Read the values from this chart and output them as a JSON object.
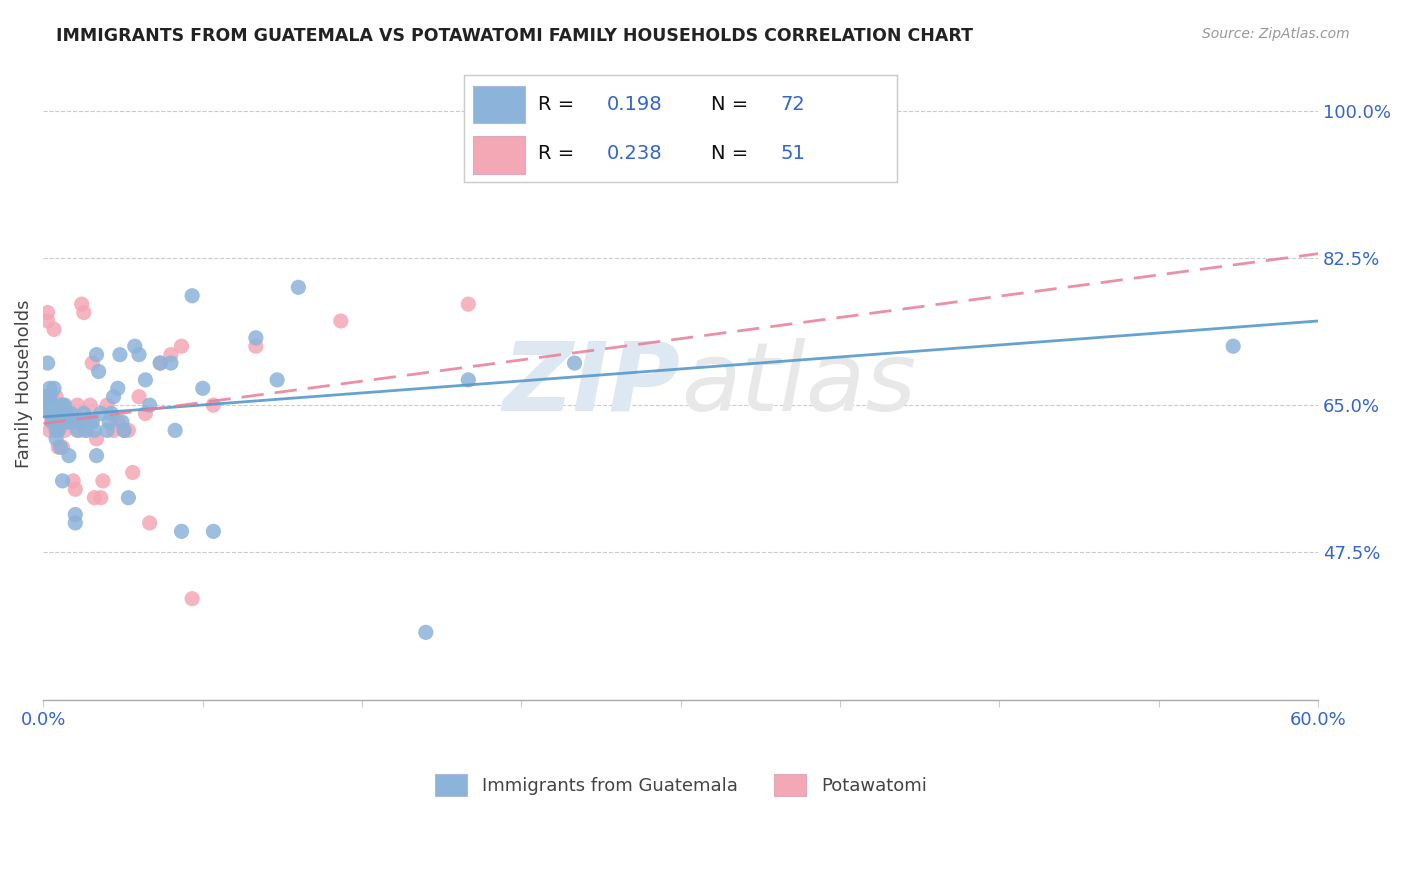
{
  "title": "IMMIGRANTS FROM GUATEMALA VS POTAWATOMI FAMILY HOUSEHOLDS CORRELATION CHART",
  "source": "Source: ZipAtlas.com",
  "ylabel": "Family Households",
  "yticks": [
    "100.0%",
    "82.5%",
    "65.0%",
    "47.5%"
  ],
  "ytick_vals": [
    1.0,
    0.825,
    0.65,
    0.475
  ],
  "xmin": 0.0,
  "xmax": 0.6,
  "ymin": 0.3,
  "ymax": 1.05,
  "blue_color": "#8cb3d9",
  "pink_color": "#f4a7b5",
  "blue_line_color": "#5599cc",
  "pink_line_color": "#e87d96",
  "legend_text_color": "#3366cc",
  "watermark_color": "#e8eef5",
  "blue_scatter_x": [
    0.001,
    0.002,
    0.002,
    0.003,
    0.003,
    0.003,
    0.004,
    0.004,
    0.004,
    0.005,
    0.005,
    0.005,
    0.006,
    0.006,
    0.006,
    0.007,
    0.007,
    0.008,
    0.008,
    0.008,
    0.009,
    0.009,
    0.01,
    0.01,
    0.011,
    0.011,
    0.012,
    0.012,
    0.013,
    0.014,
    0.015,
    0.015,
    0.016,
    0.017,
    0.018,
    0.019,
    0.02,
    0.021,
    0.022,
    0.023,
    0.024,
    0.025,
    0.025,
    0.026,
    0.027,
    0.03,
    0.031,
    0.032,
    0.033,
    0.035,
    0.036,
    0.037,
    0.038,
    0.04,
    0.043,
    0.045,
    0.048,
    0.05,
    0.055,
    0.06,
    0.062,
    0.065,
    0.07,
    0.075,
    0.08,
    0.1,
    0.11,
    0.12,
    0.18,
    0.2,
    0.25,
    0.56
  ],
  "blue_scatter_y": [
    0.645,
    0.66,
    0.7,
    0.65,
    0.66,
    0.67,
    0.63,
    0.64,
    0.65,
    0.63,
    0.65,
    0.67,
    0.61,
    0.62,
    0.64,
    0.62,
    0.63,
    0.6,
    0.63,
    0.64,
    0.56,
    0.65,
    0.63,
    0.65,
    0.63,
    0.64,
    0.59,
    0.63,
    0.64,
    0.63,
    0.51,
    0.52,
    0.62,
    0.63,
    0.63,
    0.64,
    0.62,
    0.63,
    0.63,
    0.63,
    0.62,
    0.59,
    0.71,
    0.69,
    0.64,
    0.62,
    0.63,
    0.64,
    0.66,
    0.67,
    0.71,
    0.63,
    0.62,
    0.54,
    0.72,
    0.71,
    0.68,
    0.65,
    0.7,
    0.7,
    0.62,
    0.5,
    0.78,
    0.67,
    0.5,
    0.73,
    0.68,
    0.79,
    0.38,
    0.68,
    0.7,
    0.72
  ],
  "pink_scatter_x": [
    0.001,
    0.002,
    0.002,
    0.003,
    0.003,
    0.004,
    0.004,
    0.005,
    0.005,
    0.006,
    0.006,
    0.007,
    0.007,
    0.008,
    0.008,
    0.009,
    0.01,
    0.011,
    0.012,
    0.013,
    0.014,
    0.015,
    0.015,
    0.016,
    0.017,
    0.018,
    0.019,
    0.02,
    0.022,
    0.023,
    0.024,
    0.025,
    0.027,
    0.028,
    0.03,
    0.033,
    0.035,
    0.038,
    0.04,
    0.042,
    0.045,
    0.048,
    0.05,
    0.055,
    0.06,
    0.065,
    0.07,
    0.08,
    0.1,
    0.14,
    0.2
  ],
  "pink_scatter_y": [
    0.66,
    0.75,
    0.76,
    0.62,
    0.64,
    0.63,
    0.66,
    0.63,
    0.74,
    0.63,
    0.66,
    0.6,
    0.62,
    0.63,
    0.65,
    0.6,
    0.62,
    0.64,
    0.63,
    0.63,
    0.56,
    0.55,
    0.63,
    0.65,
    0.62,
    0.77,
    0.76,
    0.62,
    0.65,
    0.7,
    0.54,
    0.61,
    0.54,
    0.56,
    0.65,
    0.62,
    0.63,
    0.62,
    0.62,
    0.57,
    0.66,
    0.64,
    0.51,
    0.7,
    0.71,
    0.72,
    0.42,
    0.65,
    0.72,
    0.75,
    0.77
  ],
  "blue_line_x": [
    0.0,
    0.6
  ],
  "blue_line_y": [
    0.636,
    0.75
  ],
  "pink_line_x": [
    0.0,
    0.6
  ],
  "pink_line_y": [
    0.628,
    0.83
  ]
}
